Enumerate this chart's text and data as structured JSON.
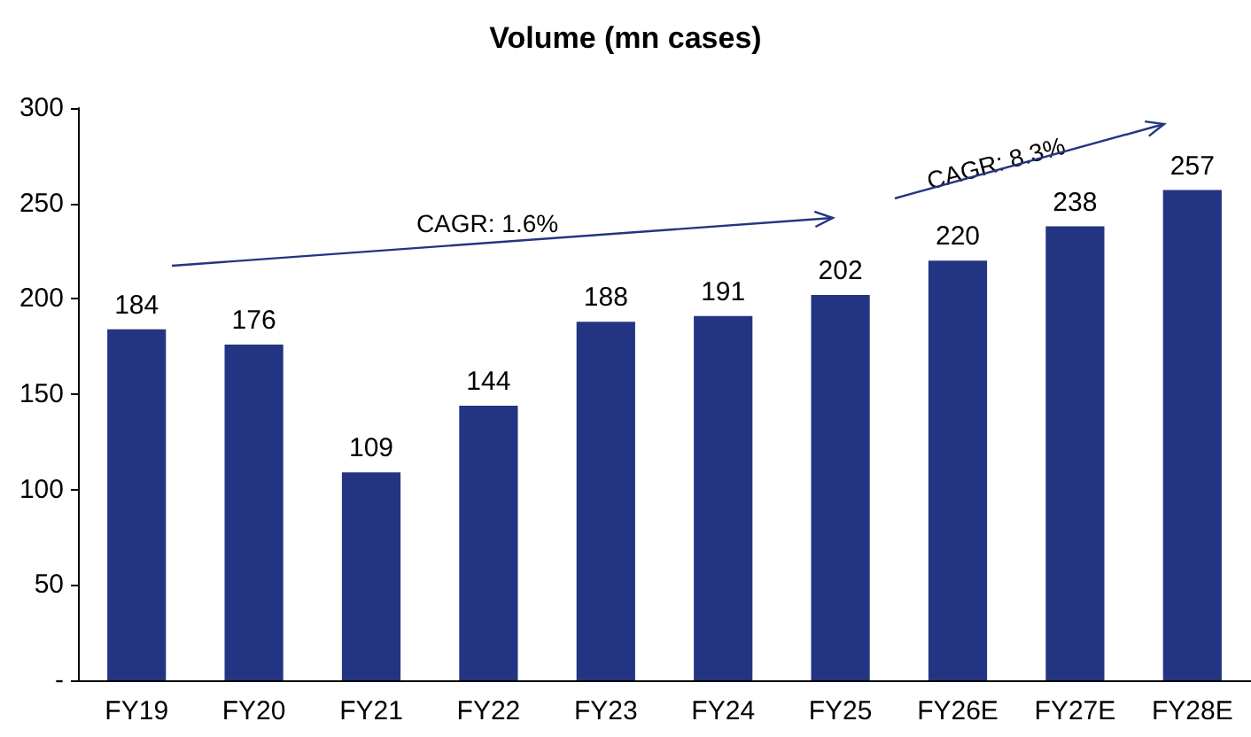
{
  "chart_data": {
    "type": "bar",
    "title": "Volume (mn cases)",
    "categories": [
      "FY19",
      "FY20",
      "FY21",
      "FY22",
      "FY23",
      "FY24",
      "FY25",
      "FY26E",
      "FY27E",
      "FY28E"
    ],
    "values": [
      184,
      176,
      109,
      144,
      188,
      191,
      202,
      220,
      238,
      257
    ],
    "color": "#233582",
    "ylim": [
      0,
      300
    ],
    "yticks": [
      {
        "value": 0,
        "label": "-"
      },
      50,
      100,
      150,
      200,
      250,
      300
    ],
    "grid": false,
    "data_labels": true,
    "annotations": [
      "CAGR: 1.6%",
      "CAGR: 8.3%"
    ]
  }
}
